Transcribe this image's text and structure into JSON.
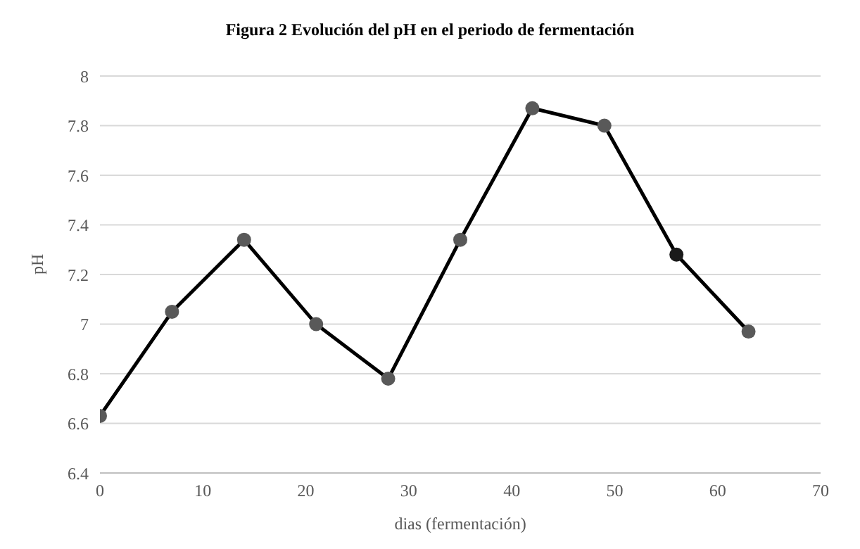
{
  "chart_data": {
    "type": "line",
    "title": "Figura 2 Evolución del pH en el periodo de fermentación",
    "xlabel": "dias (fermentación)",
    "ylabel": "pH",
    "x": [
      0,
      7,
      14,
      21,
      28,
      35,
      42,
      49,
      56,
      63
    ],
    "series": [
      {
        "color": "#000000",
        "colors": [
          "#595959",
          "#595959",
          "#595959",
          "#595959",
          "#595959",
          "#595959",
          "#595959",
          "#595959",
          "#1a1a1a",
          "#595959"
        ],
        "values": [
          6.63,
          7.05,
          7.34,
          7.0,
          6.78,
          7.34,
          7.87,
          7.8,
          7.28,
          6.97
        ]
      }
    ],
    "xlim": [
      0,
      70
    ],
    "xticks": [
      0,
      10,
      20,
      30,
      40,
      50,
      60,
      70
    ],
    "ylim": [
      6.4,
      8
    ],
    "yticks": [
      6.4,
      6.6,
      6.8,
      7,
      7.2,
      7.4,
      7.6,
      7.8,
      8
    ],
    "grid": "y",
    "marker": "circle",
    "line_style": "solid"
  }
}
